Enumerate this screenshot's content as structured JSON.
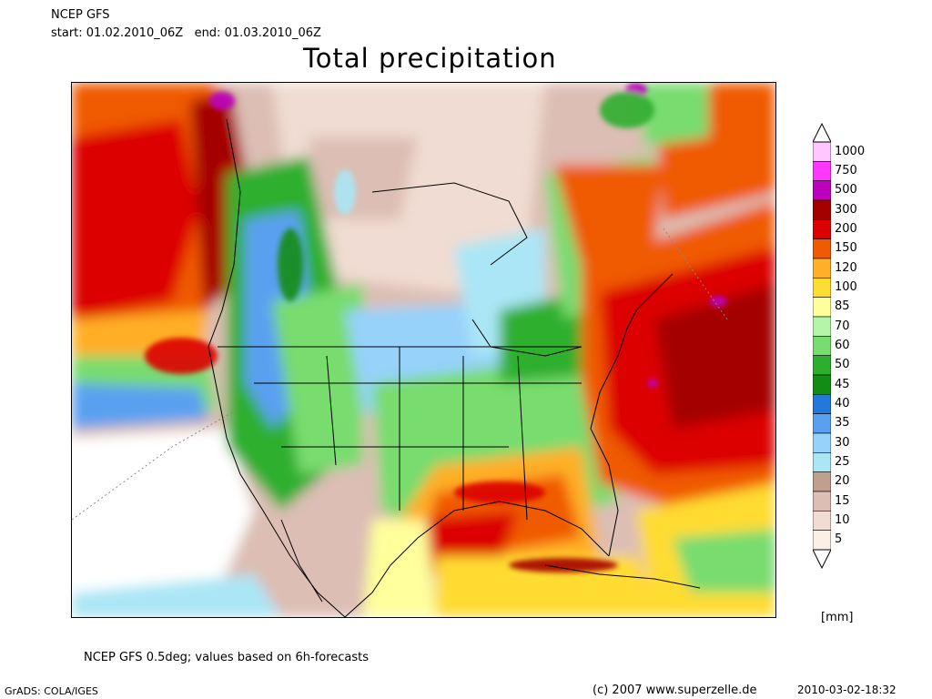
{
  "header": {
    "model": "NCEP GFS",
    "period": "start: 01.02.2010_06Z   end: 01.03.2010_06Z",
    "title": "Total precipitation"
  },
  "legend": {
    "unit": "[mm]",
    "levels": [
      {
        "label": "1000",
        "color": "#ffc6ff"
      },
      {
        "label": "750",
        "color": "#ff37ff"
      },
      {
        "label": "500",
        "color": "#bd00bd"
      },
      {
        "label": "300",
        "color": "#a50000"
      },
      {
        "label": "200",
        "color": "#dc0000"
      },
      {
        "label": "150",
        "color": "#f05a00"
      },
      {
        "label": "120",
        "color": "#ffaf28"
      },
      {
        "label": "100",
        "color": "#ffdc32"
      },
      {
        "label": "85",
        "color": "#ffff9b"
      },
      {
        "label": "70",
        "color": "#b4f5aa"
      },
      {
        "label": "60",
        "color": "#78dc6e"
      },
      {
        "label": "50",
        "color": "#2daf2d"
      },
      {
        "label": "45",
        "color": "#138c13"
      },
      {
        "label": "40",
        "color": "#2378dc"
      },
      {
        "label": "35",
        "color": "#5aa0f0"
      },
      {
        "label": "30",
        "color": "#96d2fa"
      },
      {
        "label": "25",
        "color": "#aae6f5"
      },
      {
        "label": "20",
        "color": "#c0a08c"
      },
      {
        "label": "15",
        "color": "#dcbeb4"
      },
      {
        "label": "10",
        "color": "#f0dcd2"
      },
      {
        "label": "5",
        "color": "#faf0e6"
      }
    ]
  },
  "footer": {
    "note": "NCEP GFS 0.5deg; values based on 6h-forecasts",
    "software": "GrADS: COLA/IGES",
    "copyright": "(c) 2007 www.superzelle.de",
    "timestamp": "2010-03-02-18:32"
  }
}
